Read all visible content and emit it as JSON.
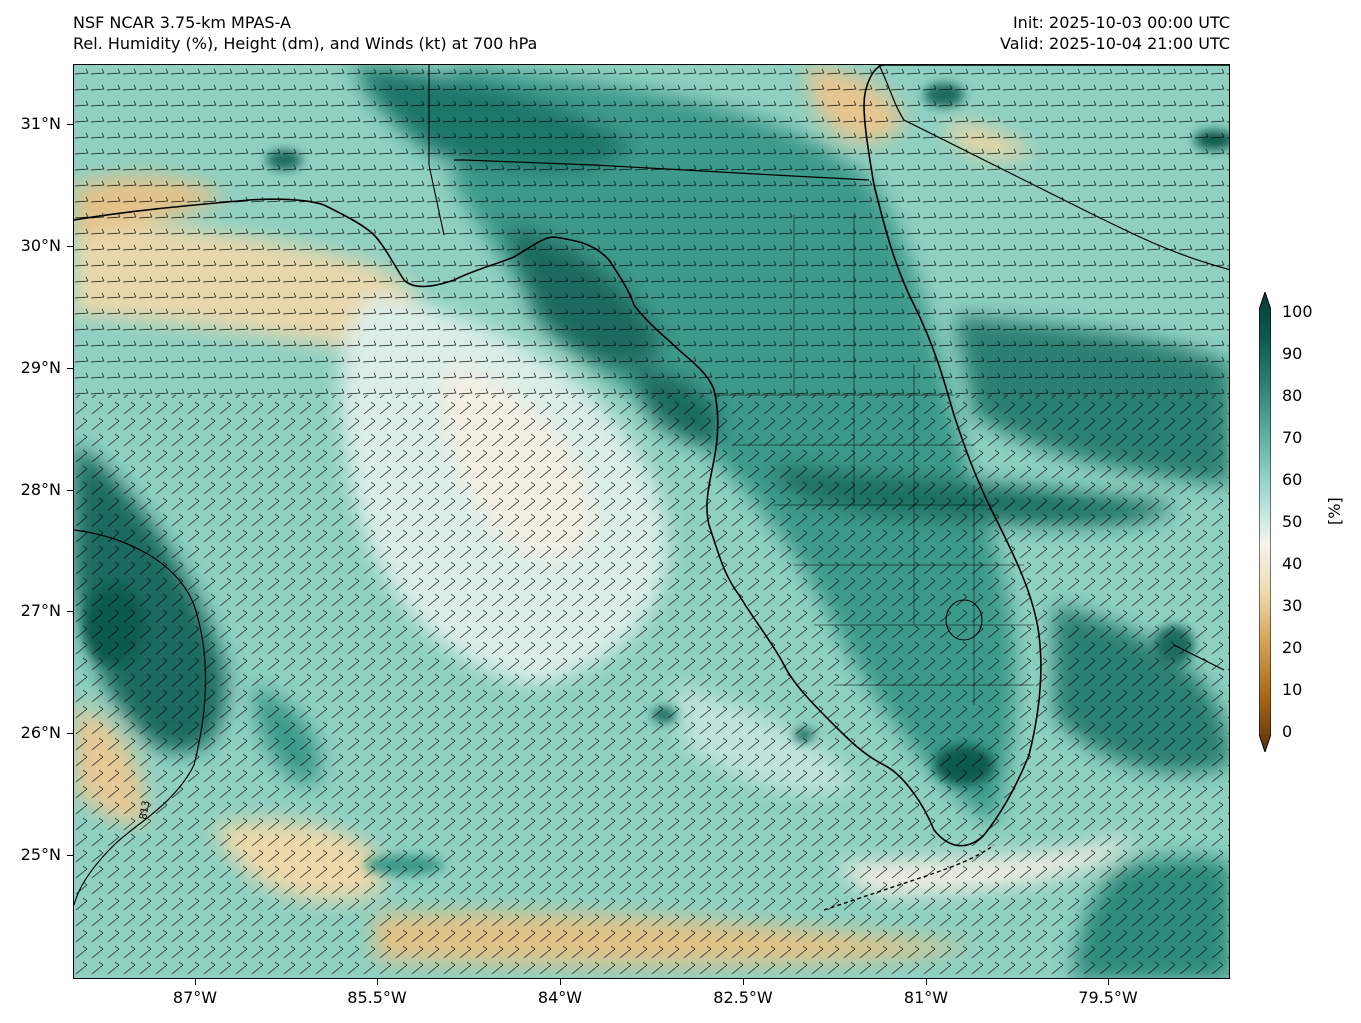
{
  "header": {
    "model": "NSF NCAR 3.75-km MPAS-A",
    "product": "Rel. Humidity (%), Height (dm), and Winds (kt) at 700 hPa",
    "init": "Init: 2025-10-03 00:00 UTC",
    "valid": "Valid: 2025-10-04 21:00 UTC"
  },
  "axes": {
    "lat_labels": [
      "31°N",
      "30°N",
      "29°N",
      "28°N",
      "27°N",
      "26°N",
      "25°N"
    ],
    "lon_labels": [
      "87°W",
      "85.5°W",
      "84°W",
      "82.5°W",
      "81°W",
      "79.5°W"
    ]
  },
  "colorbar": {
    "unit": "[%]",
    "ticks": [
      "100",
      "90",
      "80",
      "70",
      "60",
      "50",
      "40",
      "30",
      "20",
      "10",
      "0"
    ],
    "colors": {
      "dry": "#7a4a0c",
      "dry_mid": "#d6a85c",
      "neutral": "#f5f3ec",
      "moist_mid": "#7cc7b8",
      "moist": "#0d5a4e",
      "very_moist": "#063b33"
    }
  },
  "contour_label": "813",
  "map": {
    "type": "700 hPa relative humidity with wind barbs",
    "region": "Florida and eastern Gulf of Mexico"
  }
}
